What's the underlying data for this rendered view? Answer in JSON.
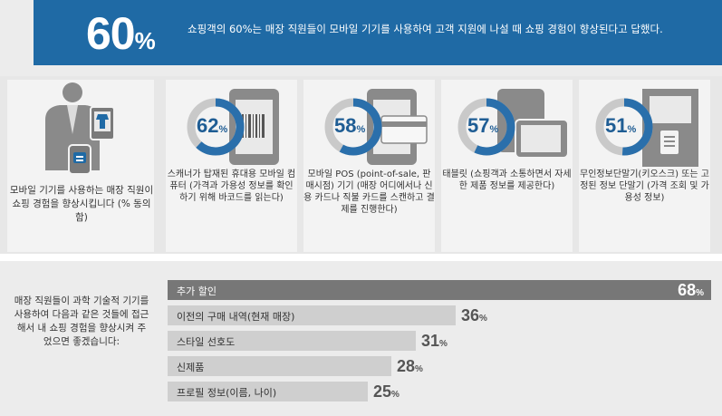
{
  "header": {
    "big_number": "60",
    "big_percent_sign": "%",
    "statement": "쇼핑객의 60%는 매장 직원들이 모바일 기기를 사용하여 고객 지원에 나설 때 쇼핑 경험이 향상된다고 답했다."
  },
  "intro": {
    "caption": "모바일 기기를 사용하는 매장 직원이 쇼핑 경험을 향상시킵니다 (% 동의함)"
  },
  "devices": [
    {
      "value": 62,
      "value_text": "62",
      "sign": "%",
      "icon": "barcode-scanner-phone-icon",
      "caption": "스캐너가 탑재된 휴대용 모바일 컴퓨터 (가격과 가용성 정보를 확인하기 위해 바코드를 읽는다)"
    },
    {
      "value": 58,
      "value_text": "58",
      "sign": "%",
      "icon": "mobile-pos-card-icon",
      "caption": "모바일 POS (point-of-sale, 판매시점) 기기 (매장 어디에서나 신용 카드나 직불 카드를 스캔하고 결제를 진행한다)"
    },
    {
      "value": 57,
      "value_text": "57",
      "sign": "%",
      "icon": "tablet-icon",
      "caption": "태블릿 (쇼핑객과 소통하면서 자세한 제품 정보를 제공한다)"
    },
    {
      "value": 51,
      "value_text": "51",
      "sign": "%",
      "icon": "kiosk-icon",
      "caption": "무인정보단말기(키오스크) 또는 고정된 정보 단말기 (가격 조회 및 가용성 정보)"
    }
  ],
  "access": {
    "caption": "매장 직원들이 과학 기술적 기기를 사용하여 다음과 같은 것들에 접근해서 내 쇼핑 경험을 향상시켜 주었으면 좋겠습니다:",
    "bars": [
      {
        "label": "추가 할인",
        "value": 68,
        "value_text": "68",
        "sign": "%"
      },
      {
        "label": "이전의 구매 내역(현재 매장)",
        "value": 36,
        "value_text": "36",
        "sign": "%"
      },
      {
        "label": "스타일 선호도",
        "value": 31,
        "value_text": "31",
        "sign": "%"
      },
      {
        "label": "신제품",
        "value": 28,
        "value_text": "28",
        "sign": "%"
      },
      {
        "label": "프로필 정보(이름, 나이)",
        "value": 25,
        "value_text": "25",
        "sign": "%"
      }
    ]
  },
  "colors": {
    "accent": "#1f6aa5",
    "ring_fill": "#2a6fab",
    "ring_track": "#c9c9c9",
    "icon_gray": "#8a8a8a",
    "bar_dark": "#777777",
    "bar_light": "#cfcfcf"
  }
}
